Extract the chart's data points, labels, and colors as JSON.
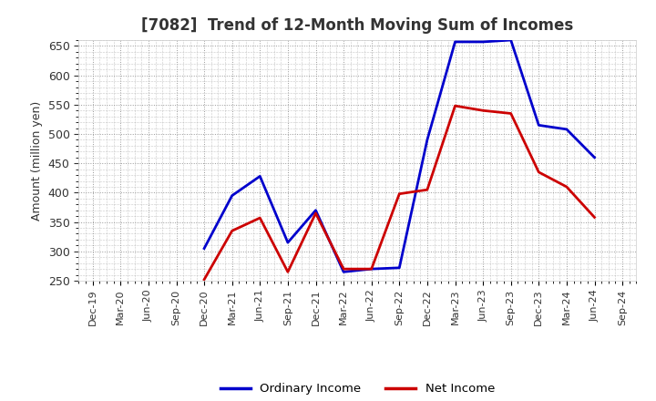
{
  "title": "[7082]  Trend of 12-Month Moving Sum of Incomes",
  "ylabel": "Amount (million yen)",
  "background_color": "#ffffff",
  "grid_color": "#999999",
  "ylim": [
    250,
    660
  ],
  "yticks": [
    250,
    300,
    350,
    400,
    450,
    500,
    550,
    600,
    650
  ],
  "x_labels": [
    "Dec-19",
    "Mar-20",
    "Jun-20",
    "Sep-20",
    "Dec-20",
    "Mar-21",
    "Jun-21",
    "Sep-21",
    "Dec-21",
    "Mar-22",
    "Jun-22",
    "Sep-22",
    "Dec-22",
    "Mar-23",
    "Jun-23",
    "Sep-23",
    "Dec-23",
    "Mar-24",
    "Jun-24",
    "Sep-24"
  ],
  "ordinary_income": [
    null,
    null,
    null,
    null,
    305,
    395,
    428,
    315,
    370,
    265,
    270,
    272,
    490,
    657,
    657,
    660,
    515,
    508,
    460,
    null
  ],
  "net_income": [
    null,
    null,
    null,
    null,
    252,
    335,
    357,
    265,
    365,
    270,
    270,
    398,
    405,
    548,
    540,
    535,
    435,
    410,
    358,
    null
  ],
  "ordinary_color": "#0000cc",
  "net_color": "#cc0000",
  "line_width": 2.0,
  "title_color": "#333333",
  "label_color": "#333333",
  "tick_color": "#333333"
}
